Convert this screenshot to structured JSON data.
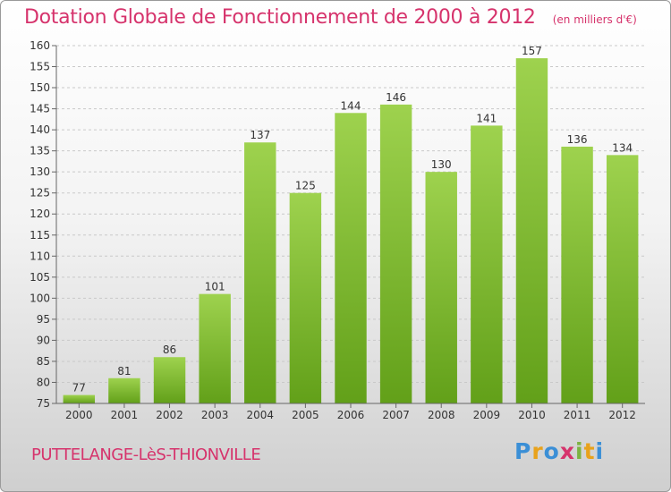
{
  "header": {
    "title": "Dotation Globale de Fonctionnement de 2000 à 2012",
    "unit": "(en milliers d'€)"
  },
  "commune": "PUTTELANGE-LèS-THIONVILLE",
  "logo": {
    "letters": [
      "P",
      "r",
      "o",
      "x",
      "i",
      "t",
      "i"
    ],
    "colors": [
      "#3b8fd6",
      "#e8a21c",
      "#3b8fd6",
      "#d6336c",
      "#7cb342",
      "#e8a21c",
      "#3b8fd6"
    ]
  },
  "chart_data": {
    "type": "bar",
    "categories": [
      "2000",
      "2001",
      "2002",
      "2003",
      "2004",
      "2005",
      "2006",
      "2007",
      "2008",
      "2009",
      "2010",
      "2011",
      "2012"
    ],
    "values": [
      77,
      81,
      86,
      101,
      137,
      125,
      144,
      146,
      130,
      141,
      157,
      136,
      134
    ],
    "ylim": [
      75,
      160
    ],
    "yticks": [
      75,
      80,
      85,
      90,
      95,
      100,
      105,
      110,
      115,
      120,
      125,
      130,
      135,
      140,
      145,
      150,
      155,
      160
    ],
    "grid": true,
    "bar_color": "#7cbf2c"
  }
}
